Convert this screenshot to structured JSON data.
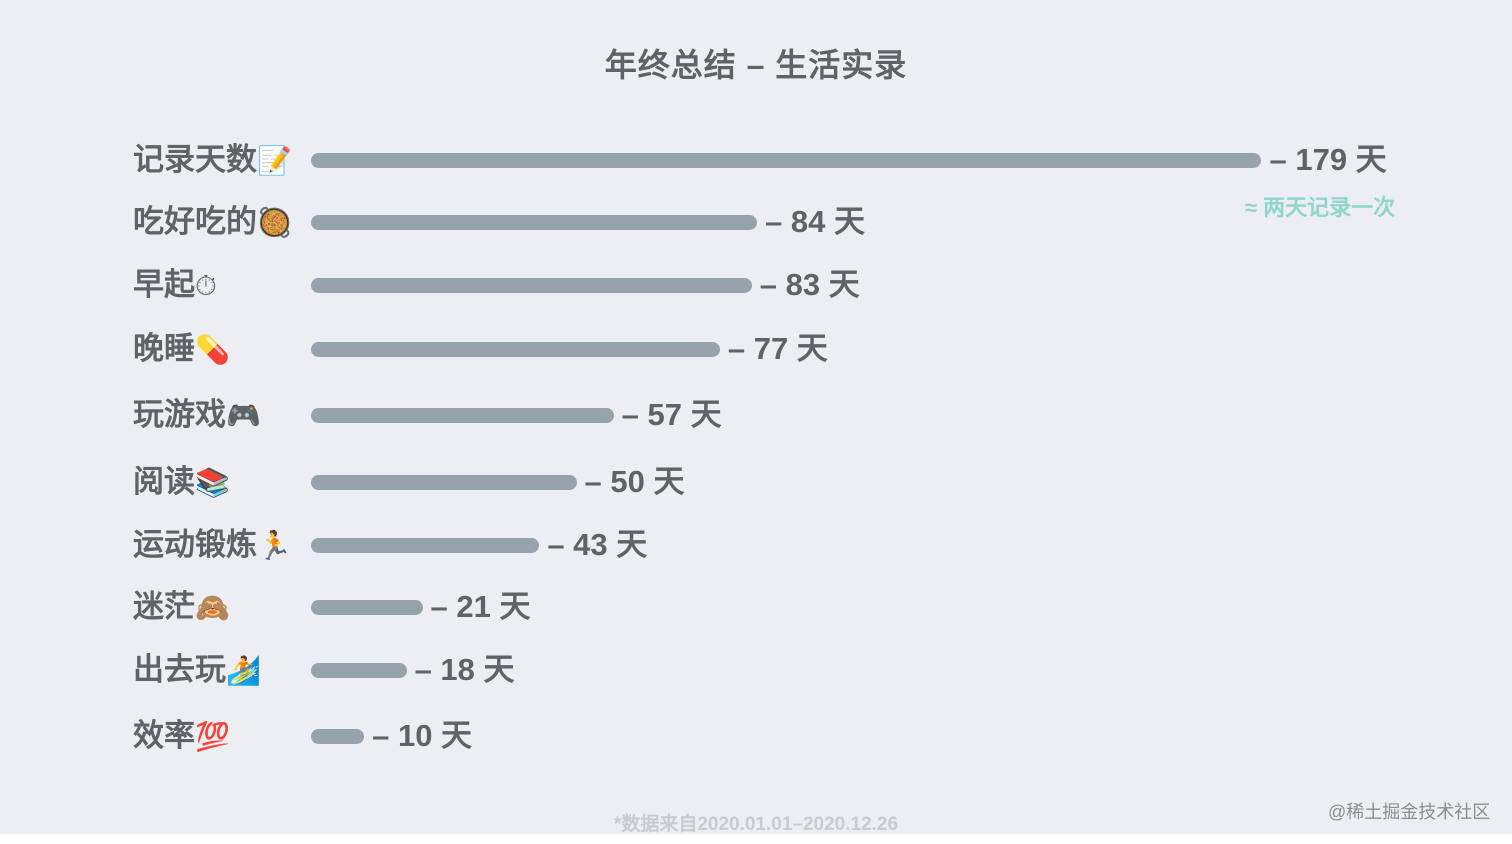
{
  "chart_data": {
    "type": "bar",
    "orientation": "horizontal",
    "title": "年终总结 – 生活实录",
    "categories": [
      "记录天数",
      "吃好吃的",
      "早起",
      "晚睡",
      "玩游戏",
      "阅读",
      "运动锻炼",
      "迷茫",
      "出去玩",
      "效率"
    ],
    "category_emojis": [
      "📝",
      "🥘",
      "⏱",
      "💊",
      "🎮",
      "📚",
      "🏃",
      "🙈",
      "🏄",
      "💯"
    ],
    "values": [
      179,
      84,
      83,
      77,
      57,
      50,
      43,
      21,
      18,
      10
    ],
    "value_labels": [
      "– 179 天",
      "– 84 天",
      "– 83 天",
      "– 77 天",
      "– 57 天",
      "– 50 天",
      "– 43 天",
      "– 21 天",
      "– 18 天",
      "– 10 天"
    ],
    "unit": "天",
    "annotation": "≈ 两天记录一次",
    "footnote": "*数据来自2020.01.01–2020.12.26",
    "bar_color": "#95a4ac",
    "annotation_color": "#8fd6cb",
    "background_color": "#eceef3",
    "grid": false,
    "legend": "none"
  },
  "watermark": "@稀土掘金技术社区"
}
